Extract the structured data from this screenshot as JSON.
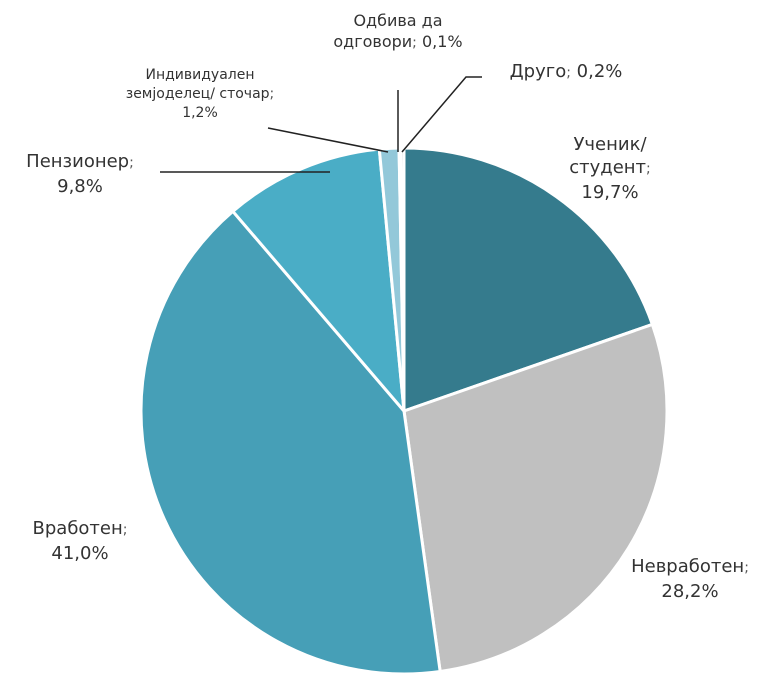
{
  "chart_data": {
    "type": "pie",
    "categories": [
      "Ученик/ студент",
      "Невработен",
      "Вработен",
      "Пензионер",
      "Индивидуален земјоделец/ сточар",
      "Одбива да одговори",
      "Друго"
    ],
    "values": [
      19.7,
      28.2,
      41.0,
      9.8,
      1.2,
      0.1,
      0.2
    ],
    "value_labels": [
      "19,7%",
      "28,2%",
      "41,0%",
      "9,8%",
      "1,2%",
      "0,1%",
      "0,2%"
    ],
    "label_separator": ";",
    "colors": [
      "#357b8d",
      "#c0c0c0",
      "#469fb7",
      "#4aadc6",
      "#93c8d9",
      "#3a8196",
      "#c6c6c6"
    ]
  }
}
